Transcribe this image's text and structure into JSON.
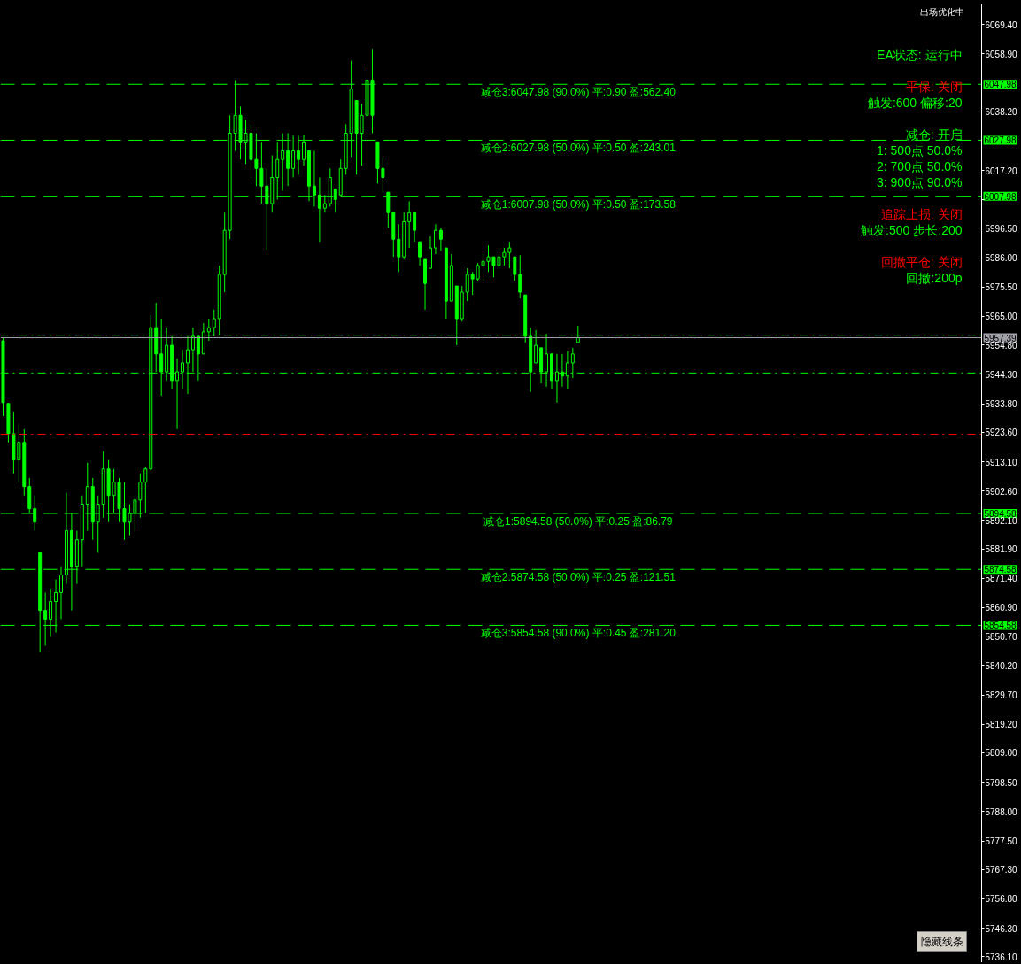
{
  "chart_data": {
    "type": "candlestick",
    "color": "#00ff00",
    "categories": [
      null,
      null,
      null,
      null,
      null,
      null,
      null,
      null,
      null,
      null,
      null,
      null,
      null,
      null,
      null,
      null,
      null,
      null,
      null,
      null,
      null,
      null,
      null,
      null,
      null,
      null,
      null,
      null,
      null,
      null,
      null,
      null,
      null,
      null,
      null,
      null,
      null,
      null,
      null,
      null,
      null,
      null,
      null,
      null,
      null,
      null,
      null,
      null,
      null,
      null,
      null,
      null,
      null,
      null,
      null,
      null,
      null,
      null,
      null,
      null,
      null,
      null,
      null,
      null,
      null,
      null,
      null,
      null,
      null,
      null,
      null,
      null,
      null,
      null,
      null,
      null,
      null,
      null,
      null,
      null,
      null,
      null,
      null,
      null,
      null,
      null,
      null,
      null,
      null,
      null,
      null,
      null,
      null,
      null,
      null,
      null,
      null,
      null,
      null,
      null,
      null,
      null,
      null,
      null,
      null,
      null,
      null,
      null,
      null,
      null,
      null,
      null,
      null,
      null,
      null,
      null,
      null,
      null,
      null,
      null,
      null,
      null,
      null,
      null,
      null,
      null,
      null,
      null,
      null,
      null,
      null,
      null,
      null,
      null,
      null,
      null,
      null,
      null,
      null,
      null,
      null,
      null,
      null,
      null,
      null,
      null,
      null,
      null,
      null,
      null,
      null,
      null,
      null,
      null,
      null,
      null,
      null,
      null,
      null,
      null,
      null,
      null,
      null,
      null,
      null,
      null,
      null,
      null,
      null,
      null,
      null,
      null,
      null,
      null,
      null,
      null,
      null,
      null,
      null,
      null,
      null,
      null,
      null,
      null,
      null,
      null
    ],
    "ohlc": [
      [
        5956.3,
        5957.3,
        5929.4,
        5934.2
      ],
      [
        5933.9,
        5933.9,
        5920.0,
        5923.1
      ],
      [
        5923.1,
        5931.0,
        5908.9,
        5913.7
      ],
      [
        5913.7,
        5926.3,
        5905.8,
        5920.0
      ],
      [
        5920.0,
        5924.7,
        5901.0,
        5904.2
      ],
      [
        5904.2,
        5907.3,
        5894.7,
        5896.3
      ],
      [
        5896.3,
        5901.0,
        5888.4,
        5891.5
      ],
      [
        5880.5,
        5880.5,
        5845.1,
        5859.9
      ],
      [
        5859.9,
        5866.3,
        5847.3,
        5856.8
      ],
      [
        5856.8,
        5867.8,
        5850.5,
        5863.1
      ],
      [
        5863.1,
        5871.0,
        5852.0,
        5866.3
      ],
      [
        5866.3,
        5875.7,
        5856.8,
        5872.6
      ],
      [
        5872.6,
        5902.0,
        5869.4,
        5888.4
      ],
      [
        5888.4,
        5894.7,
        5859.9,
        5875.7
      ],
      [
        5875.7,
        5888.4,
        5869.4,
        5885.2
      ],
      [
        5885.2,
        5901.0,
        5875.7,
        5897.9
      ],
      [
        5897.9,
        5912.7,
        5888.4,
        5904.2
      ],
      [
        5904.2,
        5907.3,
        5885.2,
        5891.5
      ],
      [
        5891.5,
        5901.0,
        5880.5,
        5897.9
      ],
      [
        5897.9,
        5916.8,
        5893.1,
        5910.5
      ],
      [
        5910.5,
        5913.7,
        5891.5,
        5901.0
      ],
      [
        5901.0,
        5910.5,
        5894.7,
        5905.8
      ],
      [
        5905.8,
        5907.3,
        5891.5,
        5896.3
      ],
      [
        5896.3,
        5905.8,
        5885.2,
        5891.5
      ],
      [
        5891.5,
        5897.9,
        5886.8,
        5894.7
      ],
      [
        5894.7,
        5901.0,
        5888.4,
        5899.4
      ],
      [
        5899.4,
        5908.9,
        5893.1,
        5905.8
      ],
      [
        5905.8,
        5911.1,
        5894.7,
        5910.5
      ],
      [
        5910.5,
        5965.5,
        5909.9,
        5961.0
      ],
      [
        5961.0,
        5969.9,
        5945.2,
        5951.6
      ],
      [
        5951.6,
        5964.2,
        5936.7,
        5945.2
      ],
      [
        5945.2,
        5961.0,
        5942.1,
        5954.7
      ],
      [
        5954.7,
        5957.9,
        5938.9,
        5942.1
      ],
      [
        5942.1,
        5950.0,
        5924.7,
        5945.2
      ],
      [
        5945.2,
        5953.1,
        5938.9,
        5948.4
      ],
      [
        5948.4,
        5957.9,
        5937.3,
        5953.1
      ],
      [
        5953.1,
        5961.0,
        5945.2,
        5957.9
      ],
      [
        5957.9,
        5957.9,
        5942.1,
        5951.6
      ],
      [
        5951.6,
        5962.6,
        5951.6,
        5959.5
      ],
      [
        5959.5,
        5964.2,
        5956.3,
        5961.0
      ],
      [
        5961.0,
        5967.4,
        5957.9,
        5964.2
      ],
      [
        5964.2,
        5983.2,
        5958.5,
        5980.0
      ],
      [
        5980.0,
        6002.1,
        5973.7,
        5995.8
      ],
      [
        5995.8,
        6036.9,
        5992.6,
        6030.5
      ],
      [
        6030.5,
        6049.5,
        6024.2,
        6036.9
      ],
      [
        6036.9,
        6040.0,
        6021.1,
        6027.4
      ],
      [
        6027.4,
        6035.3,
        6019.5,
        6030.5
      ],
      [
        6030.5,
        6033.7,
        6014.7,
        6021.1
      ],
      [
        6021.1,
        6030.5,
        6011.6,
        6017.9
      ],
      [
        6017.9,
        6027.4,
        6005.3,
        6011.6
      ],
      [
        6011.6,
        6017.9,
        5988.8,
        6005.3
      ],
      [
        6005.3,
        6022.6,
        6002.1,
        6014.7
      ],
      [
        6014.7,
        6027.4,
        6006.8,
        6021.1
      ],
      [
        6021.1,
        6030.5,
        6010.0,
        6024.2
      ],
      [
        6024.2,
        6030.5,
        6011.6,
        6017.9
      ],
      [
        6017.9,
        6029.6,
        6014.7,
        6024.2
      ],
      [
        6024.2,
        6029.6,
        6015.7,
        6021.1
      ],
      [
        6021.1,
        6029.9,
        6018.9,
        6027.4
      ],
      [
        6024.2,
        6024.2,
        6006.2,
        6011.6
      ],
      [
        6011.6,
        6024.2,
        6004.3,
        6008.4
      ],
      [
        6008.4,
        6014.7,
        5991.7,
        6003.7
      ],
      [
        6003.7,
        6008.4,
        6002.1,
        6005.3
      ],
      [
        6005.3,
        6017.9,
        6004.3,
        6014.7
      ],
      [
        6010.6,
        6010.6,
        6002.1,
        6006.8
      ],
      [
        6008.4,
        6021.1,
        6008.4,
        6017.9
      ],
      [
        6017.9,
        6033.7,
        6015.7,
        6030.5
      ],
      [
        6030.5,
        6056.4,
        6022.0,
        6046.3
      ],
      [
        6042.2,
        6042.2,
        6015.7,
        6030.5
      ],
      [
        6030.5,
        6041.0,
        6018.9,
        6036.9
      ],
      [
        6036.9,
        6054.9,
        6028.3,
        6049.5
      ],
      [
        6049.5,
        6060.6,
        6030.5,
        6036.9
      ],
      [
        6027.4,
        6027.4,
        6012.5,
        6017.9
      ],
      [
        6017.9,
        6022.0,
        6009.4,
        6014.7
      ],
      [
        6009.4,
        6009.4,
        5996.7,
        6002.1
      ],
      [
        6002.1,
        6002.1,
        5986.3,
        5992.6
      ],
      [
        5992.6,
        5998.0,
        5980.9,
        5986.3
      ],
      [
        5986.3,
        6002.1,
        5985.4,
        5998.9
      ],
      [
        5998.9,
        6006.2,
        5989.5,
        6002.1
      ],
      [
        6002.1,
        6002.1,
        5991.7,
        5995.8
      ],
      [
        5991.7,
        5991.7,
        5983.2,
        5986.3
      ],
      [
        5985.4,
        5985.4,
        5967.4,
        5976.8
      ],
      [
        5982.2,
        5993.6,
        5982.2,
        5989.5
      ],
      [
        5989.5,
        5998.0,
        5987.3,
        5995.8
      ],
      [
        5995.8,
        5996.7,
        5988.5,
        5992.6
      ],
      [
        5989.5,
        5989.5,
        5964.2,
        5970.5
      ],
      [
        5970.5,
        5987.3,
        5970.5,
        5983.2
      ],
      [
        5975.9,
        5975.9,
        5954.7,
        5964.2
      ],
      [
        5964.2,
        5975.9,
        5963.2,
        5973.7
      ],
      [
        5973.7,
        5982.2,
        5970.5,
        5980.0
      ],
      [
        5980.0,
        5980.9,
        5972.7,
        5978.4
      ],
      [
        5978.4,
        5984.1,
        5977.8,
        5983.2
      ],
      [
        5983.2,
        5987.3,
        5977.8,
        5984.7
      ],
      [
        5984.7,
        5990.4,
        5980.9,
        5986.3
      ],
      [
        5986.3,
        5986.3,
        5979.0,
        5983.2
      ],
      [
        5983.2,
        5987.3,
        5982.2,
        5986.3
      ],
      [
        5986.3,
        5989.5,
        5983.2,
        5987.9
      ],
      [
        5987.9,
        5991.7,
        5982.2,
        5989.5
      ],
      [
        5986.3,
        5986.3,
        5977.8,
        5980.0
      ],
      [
        5980.0,
        5986.9,
        5971.5,
        5973.7
      ],
      [
        5972.7,
        5972.7,
        5955.7,
        5957.9
      ],
      [
        5957.9,
        5961.0,
        5938.0,
        5945.2
      ],
      [
        5948.4,
        5960.1,
        5948.4,
        5954.7
      ],
      [
        5953.8,
        5953.8,
        5941.1,
        5945.2
      ],
      [
        5945.2,
        5958.8,
        5939.9,
        5951.6
      ],
      [
        5951.6,
        5951.6,
        5938.9,
        5942.1
      ],
      [
        5942.1,
        5951.6,
        5934.2,
        5945.2
      ],
      [
        5945.2,
        5951.6,
        5939.9,
        5943.7
      ],
      [
        5943.7,
        5952.5,
        5938.9,
        5948.4
      ],
      [
        5948.4,
        5953.8,
        5943.0,
        5951.6
      ],
      [
        5955.7,
        5961.7,
        5955.7,
        5957.4
      ],
      null,
      null,
      null,
      null,
      null,
      null,
      null,
      null,
      null,
      null,
      null,
      null,
      null,
      null,
      null,
      null,
      null,
      null,
      null,
      null,
      null,
      null,
      null,
      null,
      null,
      null,
      null,
      null,
      null,
      null,
      null,
      null,
      null,
      null,
      null,
      null,
      null,
      null,
      null,
      null,
      null,
      null,
      null,
      null,
      null,
      null,
      null,
      null,
      null,
      null,
      null,
      null,
      null,
      null,
      null,
      null,
      null,
      null,
      null,
      null,
      null,
      null,
      null,
      null,
      null,
      null,
      null,
      null,
      null,
      null,
      null,
      null,
      null,
      null,
      null,
      null
    ],
    "ylim": [
      5734.0,
      6076.7
    ],
    "yticks": [
      {
        "value": 6069.4,
        "label": "6069.40"
      },
      {
        "value": 6058.9,
        "label": "6058.90"
      },
      {
        "value": 6038.2,
        "label": "6038.20"
      },
      {
        "value": 6017.2,
        "label": "6017.20"
      },
      {
        "value": 6006.7,
        "label": null
      },
      {
        "value": 5996.5,
        "label": "5996.50"
      },
      {
        "value": 5986.0,
        "label": "5986.00"
      },
      {
        "value": 5975.5,
        "label": "5975.50"
      },
      {
        "value": 5965.0,
        "label": "5965.00"
      },
      {
        "value": 5954.8,
        "label": "5954.80"
      },
      {
        "value": 5944.3,
        "label": "5944.30"
      },
      {
        "value": 5933.8,
        "label": "5933.80"
      },
      {
        "value": 5923.6,
        "label": "5923.60"
      },
      {
        "value": 5913.1,
        "label": "5913.10"
      },
      {
        "value": 5902.6,
        "label": "5902.60"
      },
      {
        "value": 5892.1,
        "label": "5892.10"
      },
      {
        "value": 5881.9,
        "label": "5881.90"
      },
      {
        "value": 5871.4,
        "label": "5871.40"
      },
      {
        "value": 5860.9,
        "label": "5860.90"
      },
      {
        "value": 5850.7,
        "label": "5850.70"
      },
      {
        "value": 5840.2,
        "label": "5840.20"
      },
      {
        "value": 5829.7,
        "label": "5829.70"
      },
      {
        "value": 5819.2,
        "label": "5819.20"
      },
      {
        "value": 5809.0,
        "label": "5809.00"
      },
      {
        "value": 5798.5,
        "label": "5798.50"
      },
      {
        "value": 5788.0,
        "label": "5788.00"
      },
      {
        "value": 5777.5,
        "label": "5777.50"
      },
      {
        "value": 5767.3,
        "label": "5767.30"
      },
      {
        "value": 5756.8,
        "label": "5756.80"
      },
      {
        "value": 5746.3,
        "label": "5746.30"
      },
      {
        "value": 5736.1,
        "label": "5736.10"
      }
    ],
    "tick_labels": "y",
    "ref_lines": [
      {
        "axis": "y",
        "value": 6047.98,
        "label": "减仓3:6047.98 (90.0%) 平:0.90 盈:562.40",
        "color": "#00ff00",
        "line_style": "dashed"
      },
      {
        "axis": "y",
        "value": 6027.98,
        "label": "减仓2:6027.98 (50.0%) 平:0.50 盈:243.01",
        "color": "#00ff00",
        "line_style": "dashed"
      },
      {
        "axis": "y",
        "value": 6007.98,
        "label": "减仓1:6007.98 (50.0%) 平:0.50 盈:173.58",
        "color": "#00ff00",
        "line_style": "dashed"
      },
      {
        "axis": "y",
        "value": 5958.3,
        "color": "#00ff00",
        "line_style": "dashdot"
      },
      {
        "axis": "y",
        "value": 5957.39,
        "color": "#a0a0a8",
        "line_style": "solid"
      },
      {
        "axis": "y",
        "value": 5944.8,
        "color": "#00ff00",
        "line_style": "dashdot"
      },
      {
        "axis": "y",
        "value": 5922.9,
        "color": "#ff0000",
        "line_style": "dashdot"
      },
      {
        "axis": "y",
        "value": 5894.58,
        "label": "减仓1:5894.58 (50.0%) 平:0.25 盈:86.79",
        "color": "#00ff00",
        "line_style": "dashed"
      },
      {
        "axis": "y",
        "value": 5874.58,
        "label": "减仓2:5874.58 (50.0%) 平:0.25 盈:121.51",
        "color": "#00ff00",
        "line_style": "dashed"
      },
      {
        "axis": "y",
        "value": 5854.58,
        "label": "减仓3:5854.58 (90.0%) 平:0.45 盈:281.20",
        "color": "#00ff00",
        "line_style": "dashed"
      }
    ],
    "annotations": [
      "6047.98",
      "6027.98",
      "6007.98",
      "5957.39",
      "5894.58",
      "5874.58",
      "5854.58",
      "出场优化中",
      "EA状态: 运行中",
      "平保: 关闭",
      "触发:600 偏移:20",
      "减仓: 开启",
      "1: 500点 50.0%",
      "2: 700点 50.0%",
      "3: 900点 90.0%",
      "追踪止损: 关闭",
      "触发:500 步长:200",
      "回撤平仓: 关闭",
      "回撤:200p",
      "隐藏线条"
    ]
  }
}
